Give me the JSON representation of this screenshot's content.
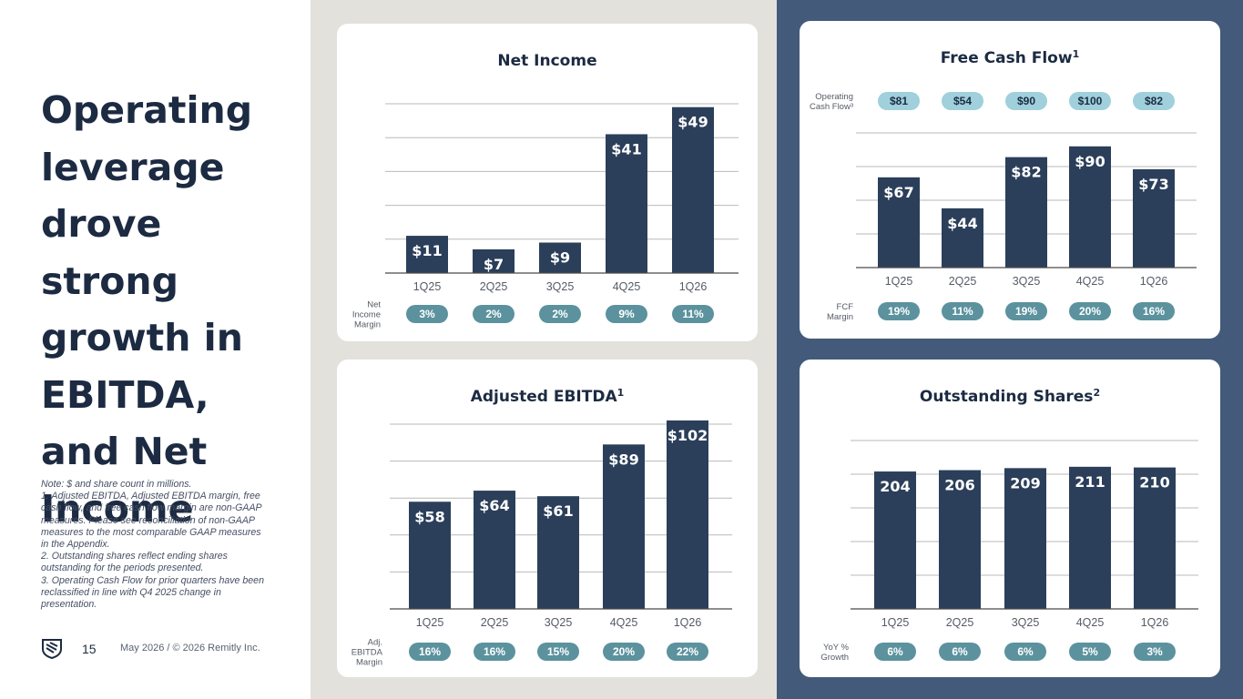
{
  "headline": "Operating leverage drove strong growth in EBITDA, and Net Income",
  "notes": [
    "Note: $ and share count in millions.",
    "1. Adjusted EBITDA, Adjusted EBITDA margin, free cash flow, and free cash flow margin are non-GAAP measures. Please see reconciliation of non-GAAP measures to the most comparable GAAP measures in the Appendix.",
    "2. Outstanding shares reflect ending shares outstanding for the periods presented.",
    "3. Operating Cash Flow for prior quarters have been reclassified in line with Q4 2025 change in presentation."
  ],
  "footer": {
    "page_number": "15",
    "text": "May 2026 / © 2026 Remitly Inc."
  },
  "colors": {
    "bar": "#2b3f5a",
    "pill_dark": "#5b929e",
    "pill_light": "#9fd0dc",
    "grid": "#b9b9b9",
    "mid_bg": "#e2e1dc",
    "right_bg": "#435a7a",
    "text_dark": "#1c2b42"
  },
  "chart_data": [
    {
      "id": "net_income",
      "type": "bar",
      "title": "Net Income",
      "categories": [
        "1Q25",
        "2Q25",
        "3Q25",
        "4Q25",
        "1Q26"
      ],
      "values": [
        11,
        7,
        9,
        41,
        49
      ],
      "value_labels": [
        "$11",
        "$7",
        "$9",
        "$41",
        "$49"
      ],
      "ylim": [
        0,
        50
      ],
      "grid": true,
      "bottom_row": {
        "label_lines": [
          "Net",
          "Income",
          "Margin"
        ],
        "labels": [
          "3%",
          "2%",
          "2%",
          "9%",
          "11%"
        ],
        "style": "dark"
      }
    },
    {
      "id": "free_cash_flow",
      "type": "bar",
      "title": "Free Cash Flow",
      "title_sup": "1",
      "categories": [
        "1Q25",
        "2Q25",
        "3Q25",
        "4Q25",
        "1Q26"
      ],
      "values": [
        67,
        44,
        82,
        90,
        73
      ],
      "value_labels": [
        "$67",
        "$44",
        "$82",
        "$90",
        "$73"
      ],
      "ylim": [
        0,
        100
      ],
      "grid": true,
      "top_row": {
        "label_lines": [
          "Operating",
          "Cash Flow³"
        ],
        "labels": [
          "$81",
          "$54",
          "$90",
          "$100",
          "$82"
        ],
        "style": "light"
      },
      "bottom_row": {
        "label_lines": [
          "FCF",
          "Margin"
        ],
        "labels": [
          "19%",
          "11%",
          "19%",
          "20%",
          "16%"
        ],
        "style": "dark"
      }
    },
    {
      "id": "adjusted_ebitda",
      "type": "bar",
      "title": "Adjusted EBITDA",
      "title_sup": "1",
      "categories": [
        "1Q25",
        "2Q25",
        "3Q25",
        "4Q25",
        "1Q26"
      ],
      "values": [
        58,
        64,
        61,
        89,
        102
      ],
      "value_labels": [
        "$58",
        "$64",
        "$61",
        "$89",
        "$102"
      ],
      "ylim": [
        0,
        100
      ],
      "grid": true,
      "bottom_row": {
        "label_lines": [
          "Adj.",
          "EBITDA",
          "Margin"
        ],
        "labels": [
          "16%",
          "16%",
          "15%",
          "20%",
          "22%"
        ],
        "style": "dark"
      }
    },
    {
      "id": "outstanding_shares",
      "type": "bar",
      "title": "Outstanding Shares",
      "title_sup": "2",
      "categories": [
        "1Q25",
        "2Q25",
        "3Q25",
        "4Q25",
        "1Q26"
      ],
      "values": [
        204,
        206,
        209,
        211,
        210
      ],
      "value_labels": [
        "204",
        "206",
        "209",
        "211",
        "210"
      ],
      "ylim": [
        0,
        250
      ],
      "grid": true,
      "bottom_row": {
        "label_lines": [
          "YoY %",
          "Growth"
        ],
        "labels": [
          "6%",
          "6%",
          "6%",
          "5%",
          "3%"
        ],
        "style": "dark"
      }
    }
  ]
}
